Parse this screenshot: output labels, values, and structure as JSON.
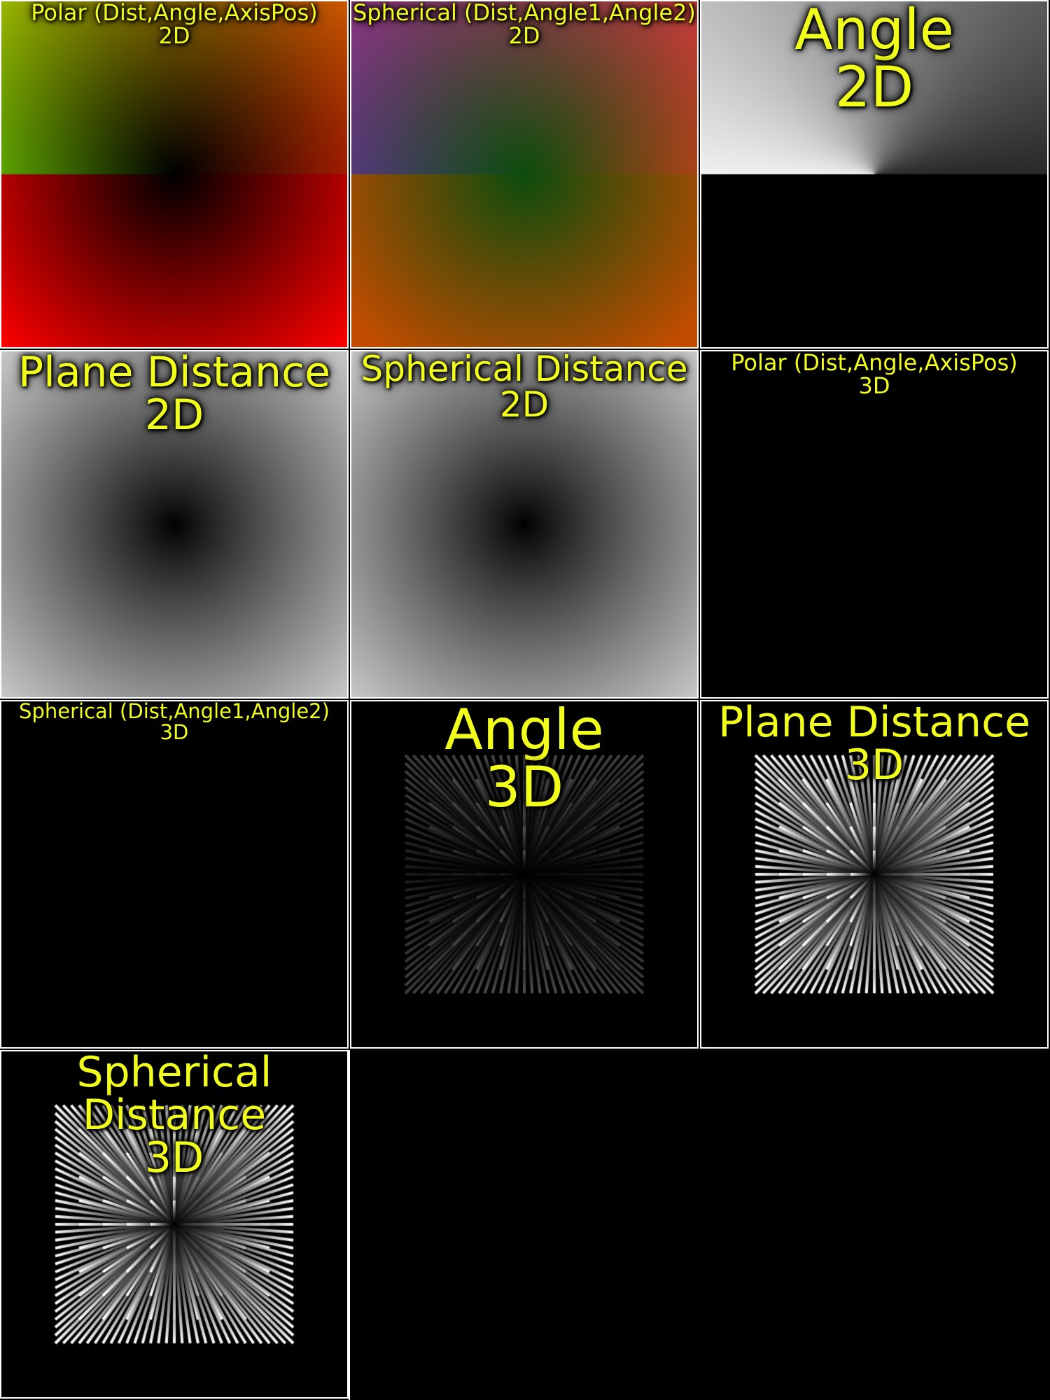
{
  "tiles": [
    {
      "title": "Polar (Dist,Angle,AxisPos)\n2D",
      "size": "small",
      "kind": "polar2d"
    },
    {
      "title": "Spherical (Dist,Angle1,Angle2)\n2D",
      "size": "small",
      "kind": "spherical2d"
    },
    {
      "title": "Angle\n2D",
      "size": "large",
      "kind": "angle2d"
    },
    {
      "title": "Plane Distance\n2D",
      "size": "med",
      "kind": "distance2d"
    },
    {
      "title": "Spherical Distance\n2D",
      "size": "med2",
      "kind": "distance2d"
    },
    {
      "title": "Polar (Dist,Angle,AxisPos)\n3D",
      "size": "small",
      "kind": "black"
    },
    {
      "title": "Spherical (Dist,Angle1,Angle2)\n3D",
      "size": "small",
      "kind": "black"
    },
    {
      "title": "Angle\n3D",
      "size": "large",
      "kind": "rays_dim"
    },
    {
      "title": "Plane Distance\n3D",
      "size": "med",
      "kind": "rays_bright"
    },
    {
      "title": "Spherical Distance\n3D",
      "size": "med",
      "kind": "rays_bright"
    }
  ],
  "colors": {
    "title_text": "#f1fd1b",
    "border": "#ffffff",
    "background": "#000000"
  }
}
